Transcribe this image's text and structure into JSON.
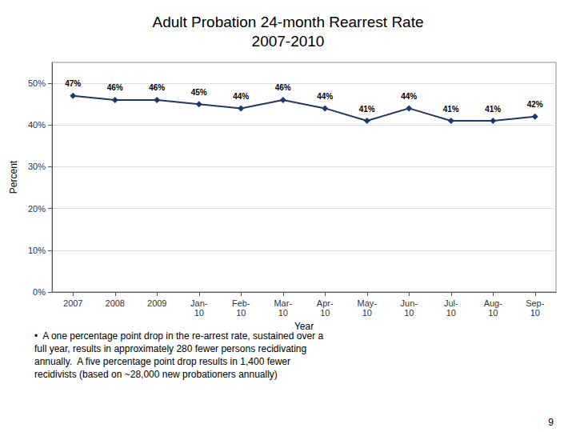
{
  "chart_data": {
    "type": "line",
    "title": "Adult Probation 24-month Rearrest Rate\n2007-2010",
    "xlabel": "Year",
    "ylabel": "Percent",
    "categories": [
      "2007",
      "2008",
      "2009",
      "Jan-\n10",
      "Feb-\n10",
      "Mar-\n10",
      "Apr-\n10",
      "May-\n10",
      "Jun-\n10",
      "Jul-\n10",
      "Aug-\n10",
      "Sep-\n10"
    ],
    "values": [
      47,
      46,
      46,
      45,
      44,
      46,
      44,
      41,
      44,
      41,
      41,
      42
    ],
    "value_labels": [
      "47%",
      "46%",
      "46%",
      "45%",
      "44%",
      "46%",
      "44%",
      "41%",
      "44%",
      "41%",
      "41%",
      "42%"
    ],
    "data_labels": true,
    "color": "#1F3864",
    "marker": "diamond",
    "ylim": [
      0,
      55
    ],
    "yticks": [
      {
        "value": 0,
        "label": "0%"
      },
      {
        "value": 10,
        "label": "10%"
      },
      {
        "value": 20,
        "label": "20%"
      },
      {
        "value": 30,
        "label": "30%"
      },
      {
        "value": 40,
        "label": "40%"
      },
      {
        "value": 50,
        "label": "50%"
      }
    ],
    "grid": true,
    "annotations": [
      "•  A one percentage point drop in the re-arrest rate, sustained over a\nfull year, results in approximately 280 fewer persons recidivating\nannually.  A five percentage point drop results in 1,400 fewer\nrecidivists (based on ~28,000 new probationers annually)",
      "9"
    ]
  }
}
